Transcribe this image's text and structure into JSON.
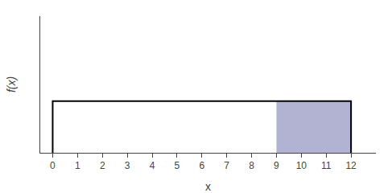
{
  "chart_data": {
    "type": "area",
    "xlabel": "x",
    "ylabel": "f(x)",
    "series": [
      {
        "type": "area",
        "x": [
          9,
          12
        ],
        "values": [
          0.0833,
          0.0833
        ],
        "color": "#8888bb"
      },
      {
        "type": "line",
        "x": [
          0,
          12
        ],
        "values": [
          0.0833,
          0.0833
        ],
        "color": "#000000"
      }
    ],
    "xlim": [
      -0.5,
      13.0
    ],
    "ylim": [
      0,
      0.22
    ],
    "xticks": [
      0,
      1,
      2,
      3,
      4,
      5,
      6,
      7,
      8,
      9,
      10,
      11,
      12
    ],
    "yticks": [],
    "tick_labels": "x",
    "grid": false
  }
}
